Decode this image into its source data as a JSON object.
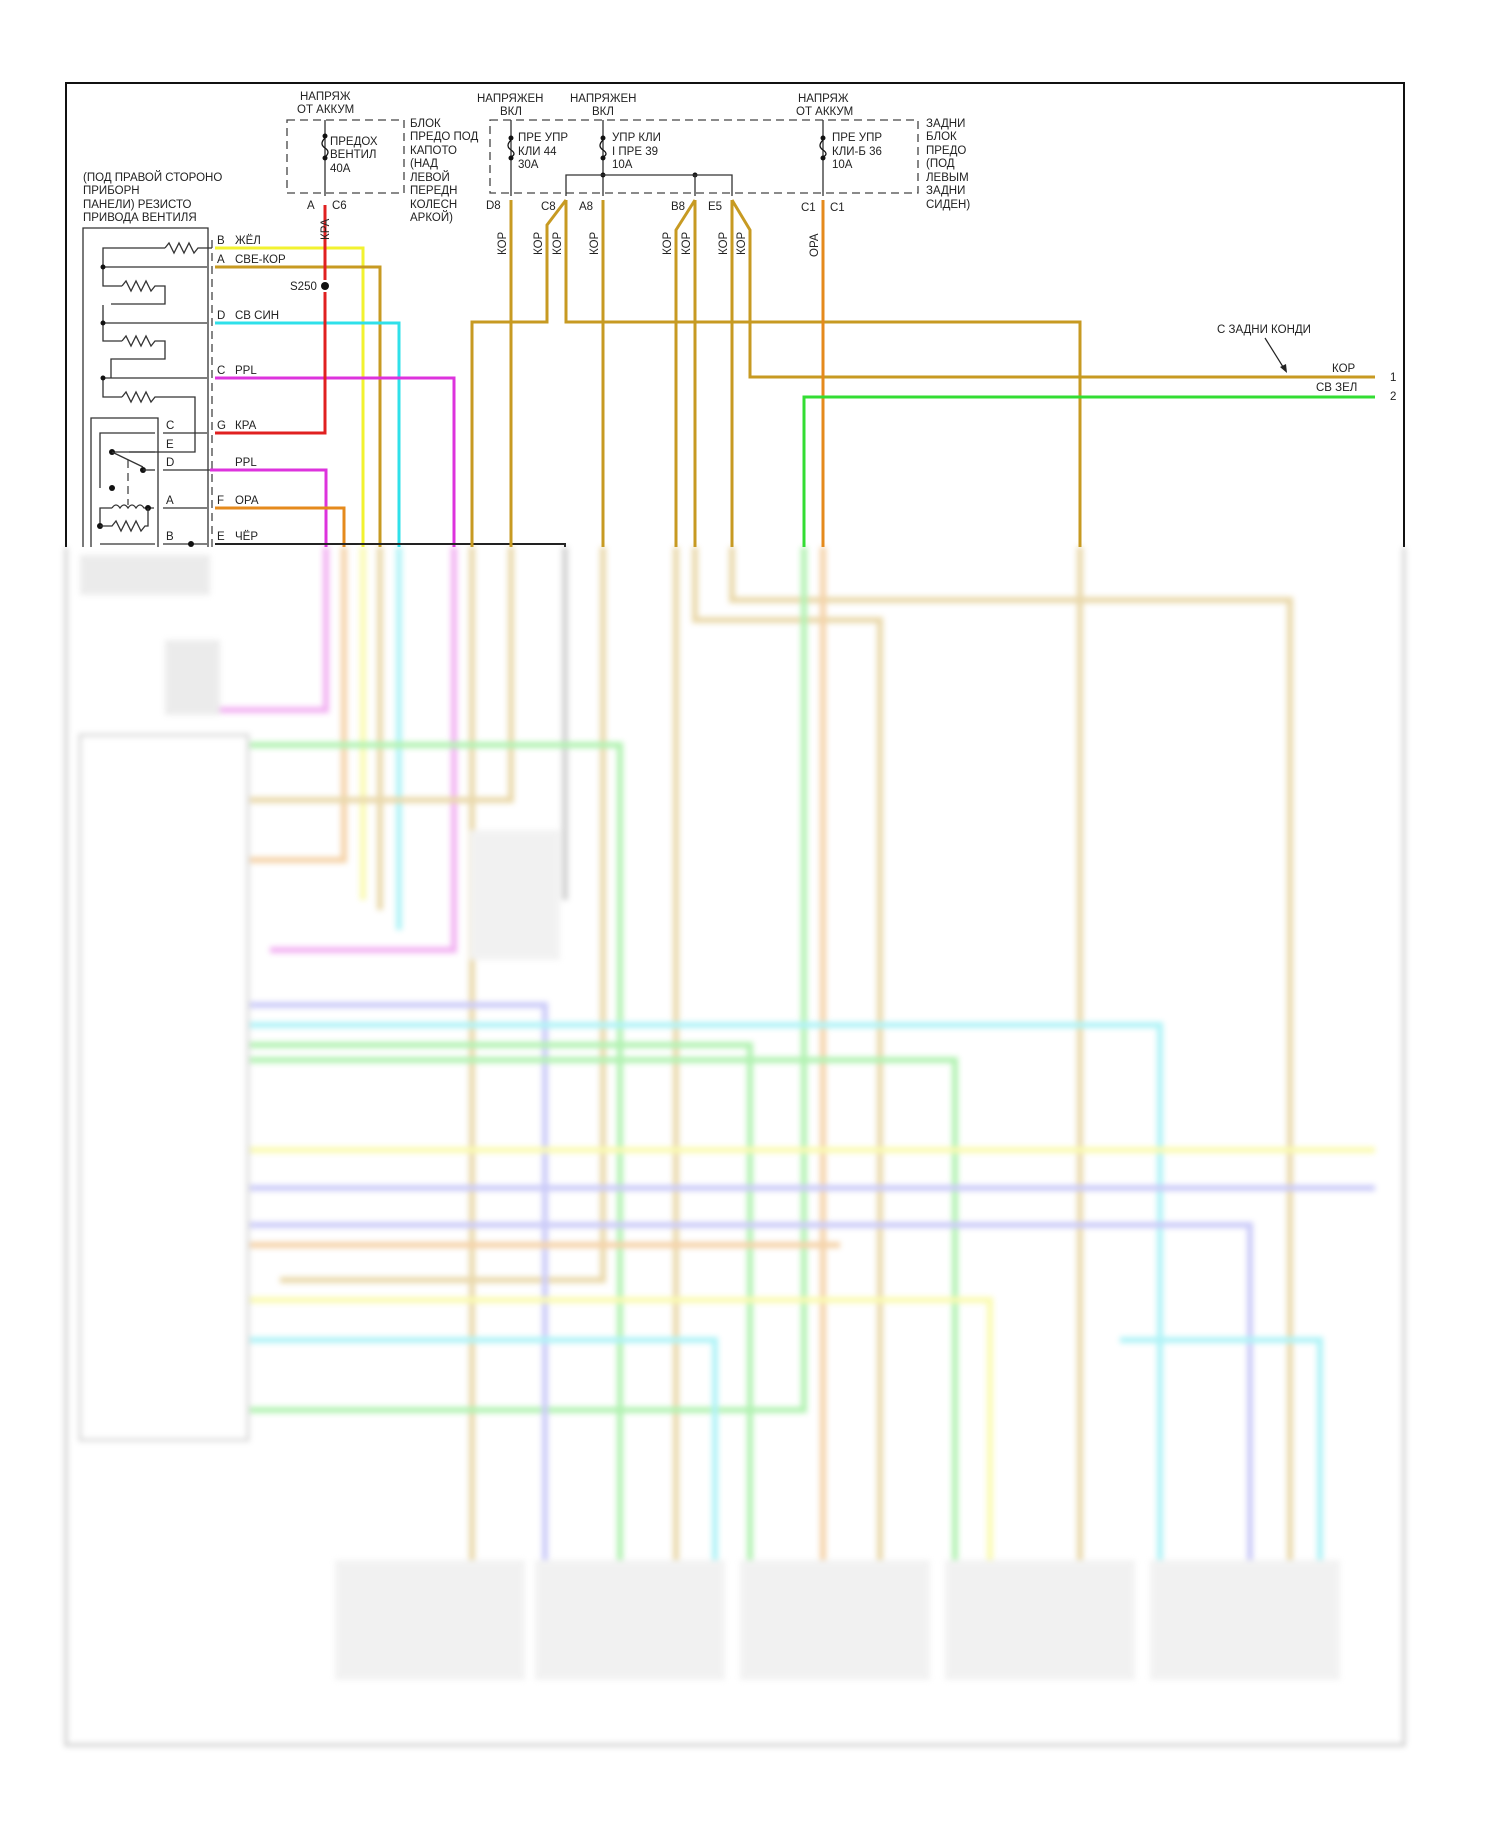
{
  "colors": {
    "yellow": "#f2f230",
    "gold": "#c79a22",
    "cyan": "#2fe0ea",
    "magenta": "#dd33dd",
    "red": "#e02020",
    "orange": "#e58a1c",
    "green": "#33dd33",
    "black": "#222222"
  },
  "power": {
    "batt_1": "НАПРЯЖ\nОТ АККУМ",
    "batt_1_l1": "НАПРЯЖ",
    "batt_1_l2": "ОТ АККУМ",
    "ign_1_l1": "НАПРЯЖЕН",
    "ign_1_l2": "ВКЛ",
    "ign_2_l1": "НАПРЯЖЕН",
    "ign_2_l2": "ВКЛ",
    "batt_2_l1": "НАПРЯЖ",
    "batt_2_l2": "ОТ АККУМ"
  },
  "underhood_block": {
    "label": [
      "БЛОК",
      "ПРЕДО ПОД",
      "КАПОТО",
      "(НАД",
      "ЛЕВОЙ",
      "ПЕРЕДН",
      "КОЛЕСН",
      "АРКОЙ)"
    ],
    "fuse": [
      "ПРЕДОХ",
      "ВЕНТИЛ",
      "40A"
    ],
    "pins": [
      "A",
      "C6"
    ]
  },
  "rear_block": {
    "label": [
      "ЗАДНИ",
      "БЛОК",
      "ПРЕДО",
      "(ПОД",
      "ЛЕВЫМ",
      "ЗАДНИ",
      "СИДЕН)"
    ],
    "fuse_44": [
      "ПРЕ УПР",
      "КЛИ 44",
      "30A"
    ],
    "fuse_39": [
      "УПР КЛИ",
      "І ПРЕ 39",
      "10A"
    ],
    "fuse_36": [
      "ПРЕ УПР",
      "КЛИ-Б 36",
      "10A"
    ],
    "pins": [
      "D8",
      "C8",
      "A8",
      "B8",
      "E5",
      "C1",
      "C1"
    ]
  },
  "resistor": {
    "label": [
      "(ПОД ПРАВОЙ СТОРОНО",
      "ПРИБОРН",
      "ПАНЕЛИ) РЕЗИСТО",
      "ПРИВОДА ВЕНТИЛЯ"
    ],
    "pins": [
      {
        "pin": "B",
        "wire": "ЖЁЛ"
      },
      {
        "pin": "A",
        "wire": "СВЕ-КОР"
      },
      {
        "pin": "D",
        "wire": "СВ СИН"
      },
      {
        "pin": "C",
        "wire": "PPL"
      },
      {
        "pin": "G",
        "wire": "КРА"
      },
      {
        "pin": "",
        "wire": "PPL"
      },
      {
        "pin": "F",
        "wire": "ОРА"
      },
      {
        "pin": "E",
        "wire": "ЧЁР"
      }
    ],
    "switch_pins": [
      "C",
      "E",
      "D",
      "A",
      "B"
    ]
  },
  "splice": "S250",
  "wire_labels": {
    "kra": "КРА",
    "kor": "КОР",
    "ora": "ОРА"
  },
  "rear_connector": {
    "label": "С ЗАДНИ КОНДИ",
    "wires": [
      {
        "pin": "1",
        "color": "КОР"
      },
      {
        "pin": "2",
        "color": "СВ ЗЕЛ"
      }
    ]
  }
}
